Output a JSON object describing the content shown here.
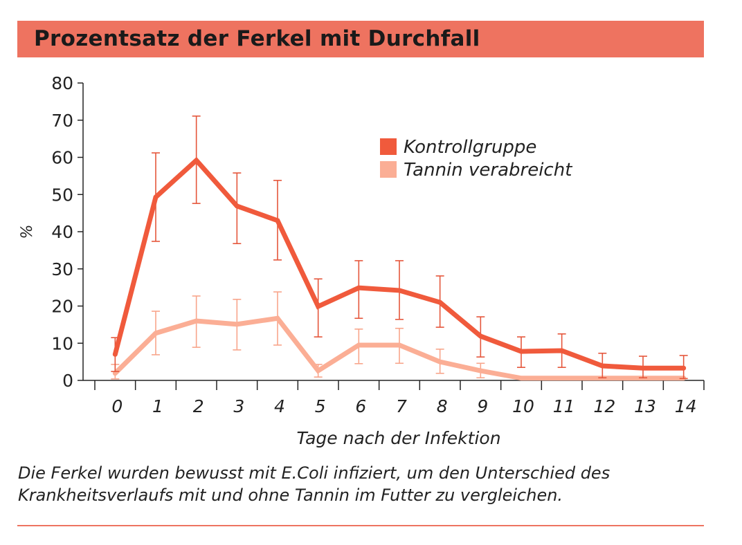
{
  "chart_data": {
    "type": "line",
    "title": "Prozentsatz der Ferkel mit Durchfall",
    "xlabel": "Tage nach der Infektion",
    "ylabel": "%",
    "ylim": [
      0,
      80
    ],
    "yticks": [
      0,
      10,
      20,
      30,
      40,
      50,
      60,
      70,
      80
    ],
    "categories": [
      "0",
      "1",
      "2",
      "3",
      "4",
      "5",
      "6",
      "7",
      "8",
      "9",
      "10",
      "11",
      "12",
      "13",
      "14"
    ],
    "legend_position": "top-right",
    "grid": false,
    "series": [
      {
        "name": "Kontrollgruppe",
        "color": "#f05a3c",
        "values": [
          7,
          49.3,
          59.2,
          46.9,
          43,
          19.9,
          24.9,
          24.2,
          21,
          11.9,
          7.8,
          8,
          3.9,
          3.3,
          3.3
        ],
        "err_high": [
          11.5,
          61.2,
          71.1,
          55.8,
          53.8,
          27.3,
          32.2,
          32.2,
          28.1,
          17.1,
          11.7,
          12.5,
          7.3,
          6.5,
          6.7
        ],
        "err_low": [
          2.4,
          37.4,
          47.6,
          36.8,
          32.4,
          11.7,
          16.7,
          16.4,
          14.3,
          6.3,
          3.5,
          3.5,
          0.7,
          0.7,
          0.5
        ]
      },
      {
        "name": "Tannin verabreicht",
        "color": "#fbae95",
        "values": [
          1.9,
          12.7,
          16,
          15.1,
          16.7,
          2.6,
          9.5,
          9.5,
          5,
          2.6,
          0.6,
          0.6,
          0.6,
          0.6,
          0.6
        ],
        "err_high": [
          4.3,
          18.6,
          22.7,
          21.8,
          23.8,
          4.3,
          13.8,
          14,
          8.4,
          4.6,
          0.6,
          0.6,
          0.6,
          0.6,
          0.6
        ],
        "err_low": [
          0.4,
          6.9,
          8.9,
          8.2,
          9.5,
          0.9,
          4.5,
          4.6,
          1.9,
          0.7,
          0.6,
          0.6,
          0.6,
          0.6,
          0.6
        ]
      }
    ],
    "caption": "Die Ferkel wurden bewusst mit E.Coli infiziert, um den Unterschied des Krankheitsverlaufs mit und ohne Tannin im Futter zu vergleichen.",
    "caption_lines": [
      "Die Ferkel wurden bewusst mit E.Coli infiziert, um den Unterschied des",
      "Krankheitsverlaufs mit und ohne Tannin im Futter zu vergleichen."
    ]
  }
}
